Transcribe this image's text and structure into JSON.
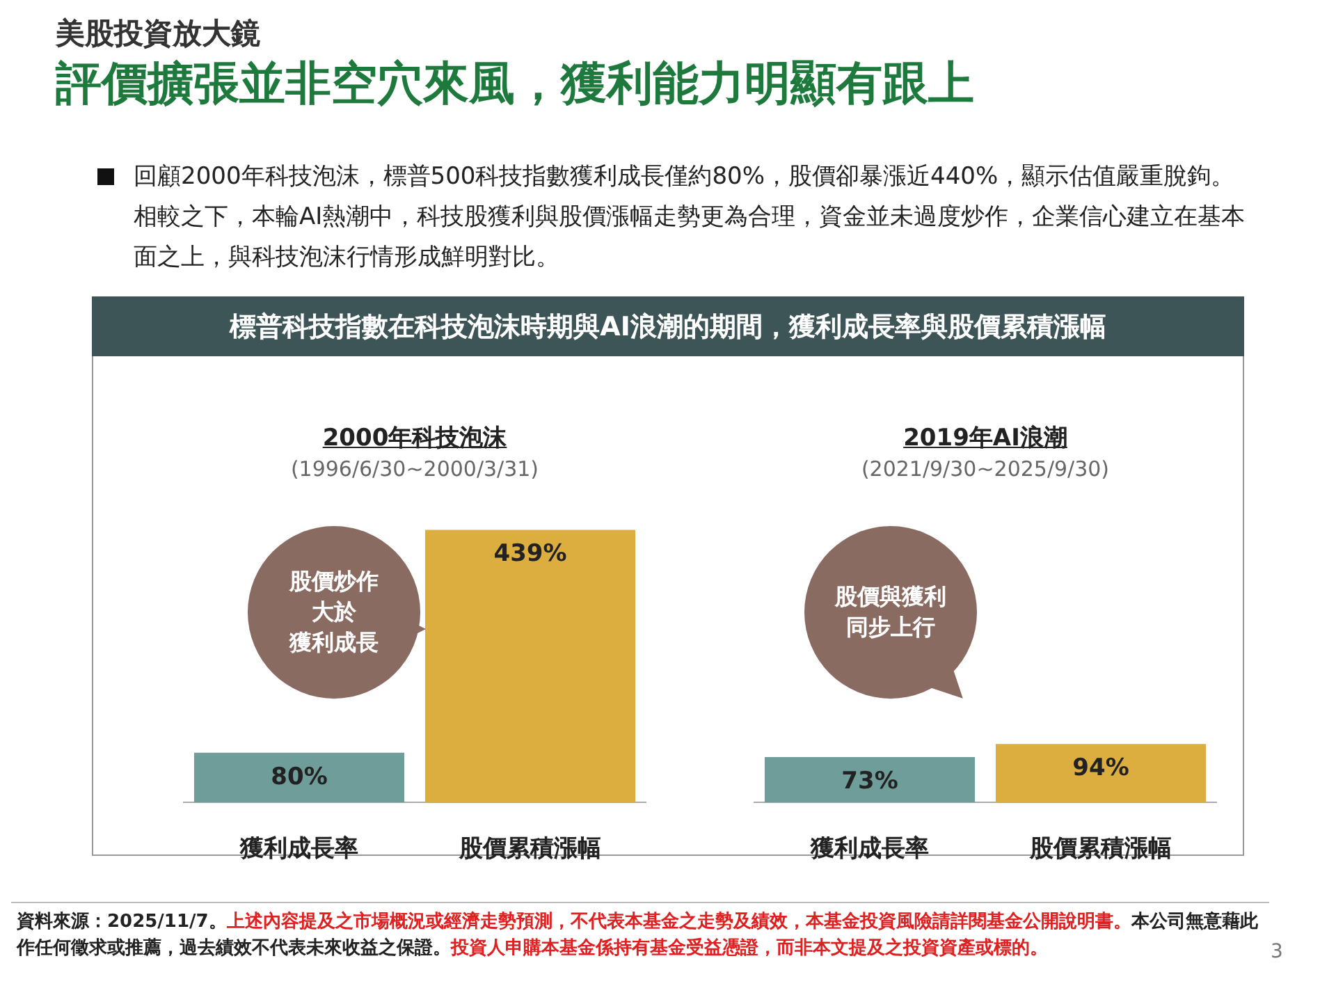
{
  "chart_data": [
    {
      "type": "other",
      "subtitle": "美股投資放大鏡",
      "title": "評價擴張並非空穴來風，獲利能力明顯有跟上",
      "annotations": [
        "回顧2000年科技泡沫，標普500科技指數獲利成長僅約80%，股價卻暴漲近440%，顯示估值嚴重脫鉤。相較之下，本輪AI熱潮中，科技股獲利與股價漲幅走勢更為合理，資金並未過度炒作，企業信心建立在基本面之上，與科技泡沫行情形成鮮明對比。",
        "標普科技指數在科技泡沫時期與AI浪潮的期間，獲利成長率與股價累積漲幅",
        "資料來源：2025/11/7。",
        "上述內容提及之市場概況或經濟走勢預測，不代表本基金之走勢及績效，本基金投資風險請詳閱基金公開說明書。",
        "本公司無意藉此作任何徵求或推薦，過去績效不代表未來收益之保證。",
        "投資人申購本基金係持有基金受益憑證，而非本文提及之投資資產或標的。",
        "3"
      ]
    },
    {
      "type": "bar",
      "title": "2000年科技泡沫",
      "subtitle": "(1996/6/30~2000/3/31)",
      "categories": [
        "獲利成長率",
        "股價累積漲幅"
      ],
      "values": [
        80,
        439
      ],
      "colors": [
        "#6f9d9a",
        "#dcae40"
      ],
      "value_labels": [
        "80%",
        "439%"
      ],
      "tick_labels": "x",
      "annotations": [
        "股價炒作",
        "大於",
        "獲利成長"
      ]
    },
    {
      "type": "bar",
      "title": "2019年AI浪潮",
      "subtitle": "(2021/9/30~2025/9/30)",
      "categories": [
        "獲利成長率",
        "股價累積漲幅"
      ],
      "values": [
        73,
        94
      ],
      "colors": [
        "#6f9d9a",
        "#dcae40"
      ],
      "value_labels": [
        "73%",
        "94%"
      ],
      "tick_labels": "x",
      "annotations": [
        "股價與獲利",
        "同步上行"
      ]
    }
  ]
}
